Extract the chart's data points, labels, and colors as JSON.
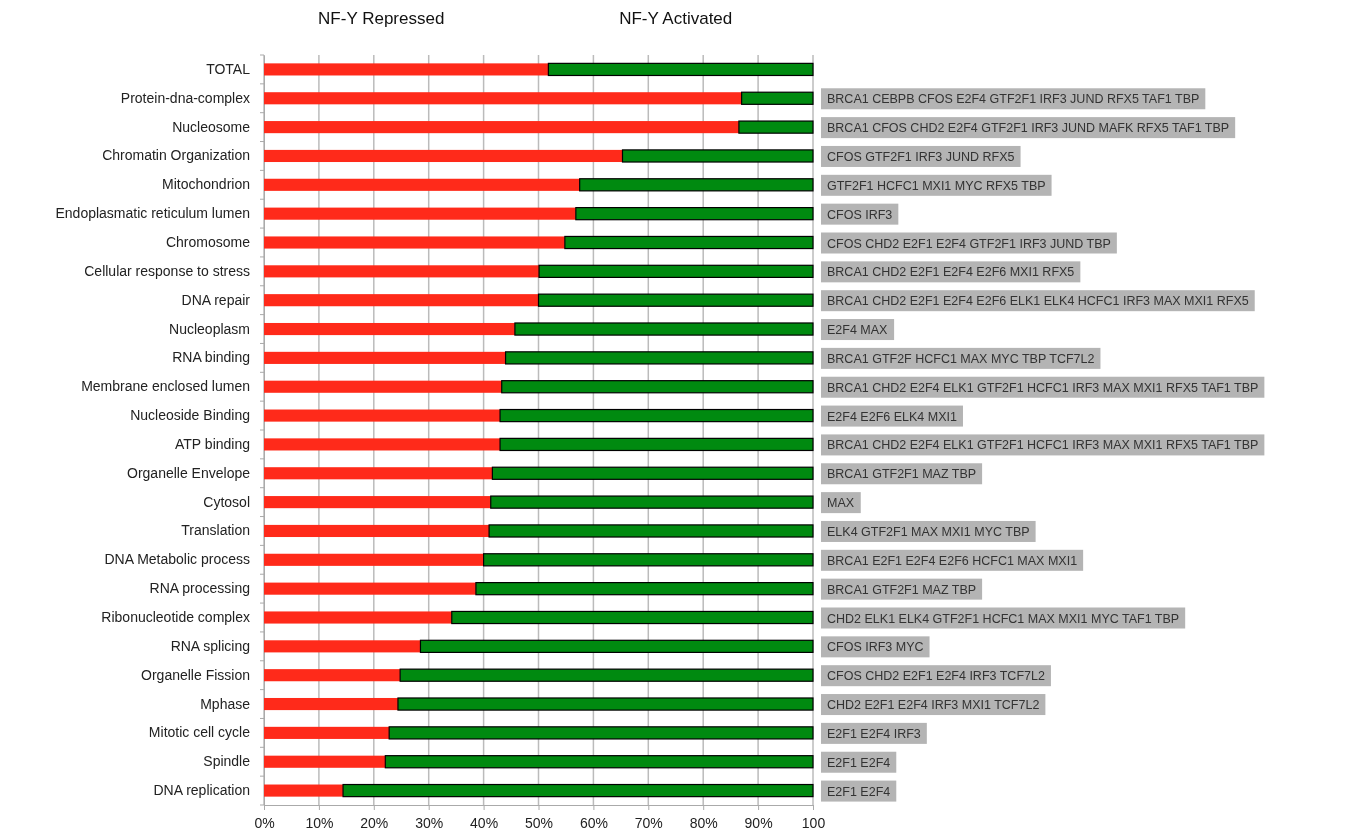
{
  "chart_data": {
    "type": "bar",
    "orientation": "horizontal",
    "stacked": true,
    "categories": [
      "TOTAL",
      "Protein-dna-complex",
      "Nucleosome",
      "Chromatin Organization",
      "Mitochondrion",
      "Endoplasmatic reticulum lumen",
      "Chromosome",
      "Cellular response to stress",
      "DNA repair",
      "Nucleoplasm",
      "RNA binding",
      "Membrane enclosed lumen",
      "Nucleoside Binding",
      "ATP binding",
      "Organelle Envelope",
      "Cytosol",
      "Translation",
      "DNA Metabolic process",
      "RNA processing",
      "Ribonucleotide complex",
      "RNA splicing",
      "Organelle Fission",
      "Mphase",
      "Mitotic cell cycle",
      "Spindle",
      "DNA replication"
    ],
    "series": [
      {
        "name": "NF-Y Repressed",
        "color": "#ff2a1a",
        "values": [
          51.8,
          87.0,
          86.5,
          65.3,
          57.5,
          56.8,
          54.8,
          50.1,
          50.0,
          45.7,
          44.0,
          43.3,
          43.0,
          43.0,
          41.6,
          41.3,
          41.0,
          40.0,
          38.6,
          34.2,
          28.5,
          24.8,
          24.4,
          22.8,
          22.1,
          14.4
        ]
      },
      {
        "name": "NF-Y Activated",
        "color": "#008a10",
        "values": [
          48.2,
          13.0,
          13.5,
          34.7,
          42.5,
          43.2,
          45.2,
          49.9,
          50.0,
          54.3,
          56.0,
          56.7,
          57.0,
          57.0,
          58.4,
          58.7,
          59.0,
          60.0,
          61.4,
          65.8,
          71.5,
          75.2,
          75.6,
          77.2,
          77.9,
          85.6
        ]
      }
    ],
    "xlim": [
      0,
      100
    ],
    "xticks": [
      {
        "value": 0,
        "label": "0%"
      },
      {
        "value": 10,
        "label": "10%"
      },
      {
        "value": 20,
        "label": "20%"
      },
      {
        "value": 30,
        "label": "30%"
      },
      {
        "value": 40,
        "label": "40%"
      },
      {
        "value": 50,
        "label": "50%"
      },
      {
        "value": 60,
        "label": "60%"
      },
      {
        "value": 70,
        "label": "70%"
      },
      {
        "value": 80,
        "label": "80%"
      },
      {
        "value": 90,
        "label": "90%"
      },
      100
    ],
    "grid": "x",
    "annotations": [
      "BRCA1 CEBPB CFOS E2F4 GTF2F1 IRF3 JUND RFX5 TAF1 TBP",
      "BRCA1 CFOS CHD2 E2F4 GTF2F1 IRF3 JUND MAFK RFX5 TAF1 TBP",
      "CFOS GTF2F1 IRF3 JUND RFX5",
      "GTF2F1 HCFC1 MXI1 MYC RFX5 TBP",
      "CFOS IRF3",
      "CFOS CHD2 E2F1 E2F4 GTF2F1 IRF3 JUND TBP",
      "BRCA1 CHD2 E2F1 E2F4 E2F6 MXI1 RFX5",
      "BRCA1 CHD2 E2F1 E2F4 E2F6 ELK1 ELK4 HCFC1 IRF3 MAX MXI1 RFX5",
      "E2F4 MAX",
      "BRCA1 GTF2F HCFC1 MAX MYC TBP TCF7L2",
      "BRCA1 CHD2 E2F4 ELK1 GTF2F1 HCFC1 IRF3 MAX MXI1 RFX5 TAF1 TBP",
      "E2F4 E2F6 ELK4 MXI1",
      "BRCA1 CHD2 E2F4 ELK1 GTF2F1 HCFC1 IRF3 MAX MXI1 RFX5 TAF1 TBP",
      "BRCA1 GTF2F1 MAZ TBP",
      "MAX",
      "ELK4 GTF2F1 MAX MXI1 MYC TBP",
      "BRCA1 E2F1 E2F4 E2F6 HCFC1 MAX MXI1",
      "BRCA1 GTF2F1 MAZ TBP",
      "CHD2 ELK1 ELK4 GTF2F1 HCFC1 MAX MXI1 MYC TAF1 TBP",
      "CFOS IRF3 MYC",
      "CFOS CHD2 E2F1 E2F4 IRF3 TCF7L2",
      "CHD2 E2F1 E2F4 IRF3 MXI1 TCF7L2",
      "E2F1 E2F4 IRF3",
      "E2F1 E2F4",
      "E2F1 E2F4"
    ]
  }
}
